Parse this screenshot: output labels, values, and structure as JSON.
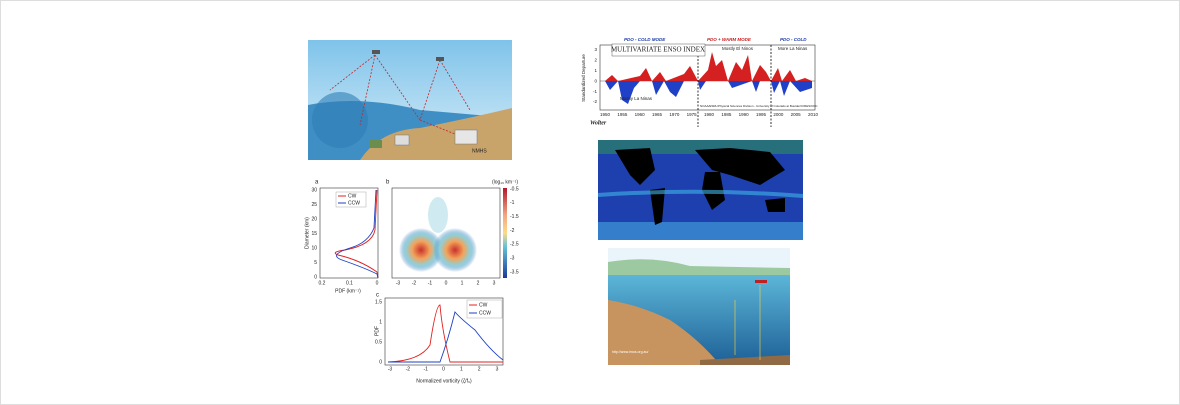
{
  "satellite_diagram": {
    "label": "NMHS"
  },
  "eddy_figure": {
    "panel_a": {
      "label": "a",
      "legend": [
        "CW",
        "CCW"
      ],
      "y_axis_label": "Diameter (km)",
      "y_ticks": [
        "30",
        "25",
        "20",
        "15",
        "10",
        "5",
        "0"
      ],
      "x_axis_label": "PDF (km⁻¹)",
      "x_ticks": [
        "0.2",
        "0.1",
        "0"
      ]
    },
    "panel_b": {
      "label": "b",
      "colorbar_label": "(log₁₀ km⁻¹)",
      "colorbar_ticks": [
        "-0.5",
        "-1",
        "-1.5",
        "-2",
        "-2.5",
        "-3",
        "-3.5"
      ],
      "x_ticks": [
        "-3",
        "-2",
        "-1",
        "0",
        "1",
        "2",
        "3"
      ]
    },
    "panel_c": {
      "label": "c",
      "y_axis_label": "PDF",
      "y_ticks": [
        "1.5",
        "1",
        "0.5",
        "0"
      ],
      "legend": [
        "CW",
        "CCW"
      ],
      "x_ticks": [
        "-3",
        "-2",
        "-1",
        "0",
        "1",
        "2",
        "3"
      ],
      "x_axis_label": "Normalized vorticity (ζ/f₀)"
    }
  },
  "enso_chart": {
    "modes": [
      "PDO - COLD MODE",
      "PDO + WARM MODE",
      "PDO - COLD"
    ],
    "title": "MULTIVARIATE ENSO INDEX",
    "y_axis_label": "Standardized Departure",
    "y_ticks": [
      "3",
      "2",
      "1",
      "0",
      "-1",
      "-2"
    ],
    "x_ticks": [
      "1950",
      "1955",
      "1960",
      "1965",
      "1970",
      "1975",
      "1980",
      "1985",
      "1990",
      "1995",
      "2000",
      "2005",
      "2010"
    ],
    "annotations": [
      "Mostly El Ninos",
      "More La Ninas",
      "Mostly La Ninas"
    ],
    "credit": "NOAA/ESRL/Physical Sciences Division - University of Colorado at Boulder/CIRES/CDC",
    "author": "Wolter"
  },
  "ocean_illustration": {
    "url": "http://www.imos.org.au/"
  }
}
